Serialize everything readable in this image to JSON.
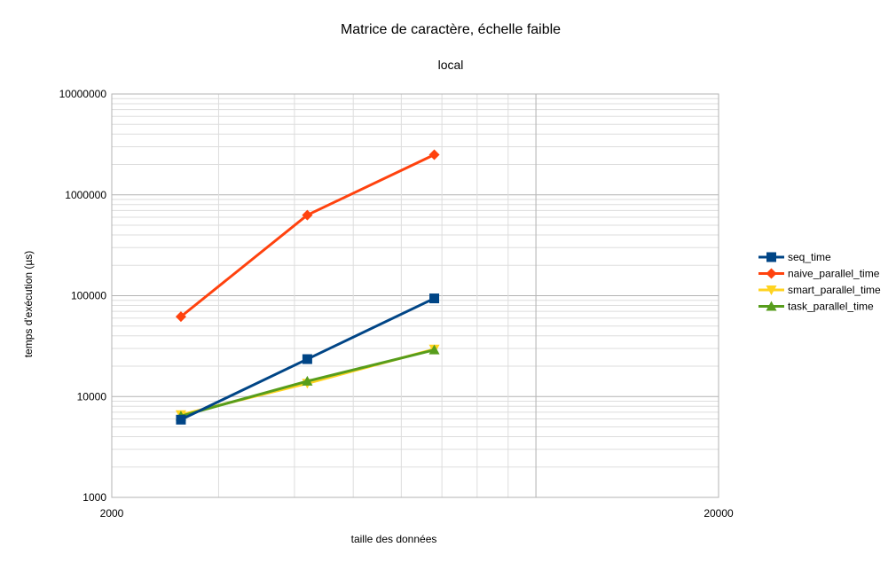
{
  "chart_data": {
    "type": "line",
    "title": "Matrice de caractère, échelle faible",
    "subtitle": "local",
    "xlabel": "taille des données",
    "ylabel": "temps d'exécution (µs)",
    "x_scale": "log",
    "y_scale": "log",
    "xlim": [
      2000,
      20000
    ],
    "ylim": [
      1000,
      10000000
    ],
    "x_ticks": [
      "2000",
      "20000"
    ],
    "y_ticks": [
      "1000",
      "10000",
      "100000",
      "1000000",
      "10000000"
    ],
    "grid": true,
    "legend_position": "right",
    "x": [
      2600,
      4200,
      6800
    ],
    "series": [
      {
        "name": "seq_time",
        "values": [
          5900,
          23500,
          94000
        ],
        "color": "#004586",
        "marker": "square"
      },
      {
        "name": "naive_parallel_time",
        "values": [
          62000,
          630000,
          2500000
        ],
        "color": "#ff420e",
        "marker": "diamond"
      },
      {
        "name": "smart_parallel_time",
        "values": [
          6600,
          13500,
          29500
        ],
        "color": "#ffd320",
        "marker": "triangle-down"
      },
      {
        "name": "task_parallel_time",
        "values": [
          6400,
          14200,
          29000
        ],
        "color": "#579d1c",
        "marker": "triangle-up"
      }
    ]
  }
}
